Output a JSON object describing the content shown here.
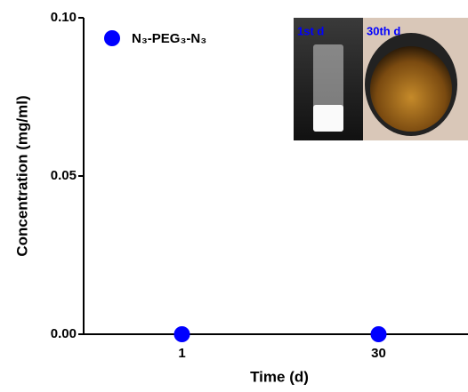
{
  "chart_data": {
    "type": "scatter",
    "y_label": "Concentration (mg/ml)",
    "x_label": "Time (d)",
    "categories": [
      "1",
      "30"
    ],
    "series": [
      {
        "name": "N₃-PEG₃-N₃",
        "color": "#0000ff",
        "values": [
          0,
          0
        ]
      }
    ],
    "ylim": [
      0,
      0.1
    ],
    "yticks": [
      {
        "value": 0,
        "label": "0.00"
      },
      {
        "value": 0.05,
        "label": "0.05"
      },
      {
        "value": 0.1,
        "label": "0.10"
      }
    ],
    "annotations": [
      "1st d",
      "30th d"
    ]
  }
}
